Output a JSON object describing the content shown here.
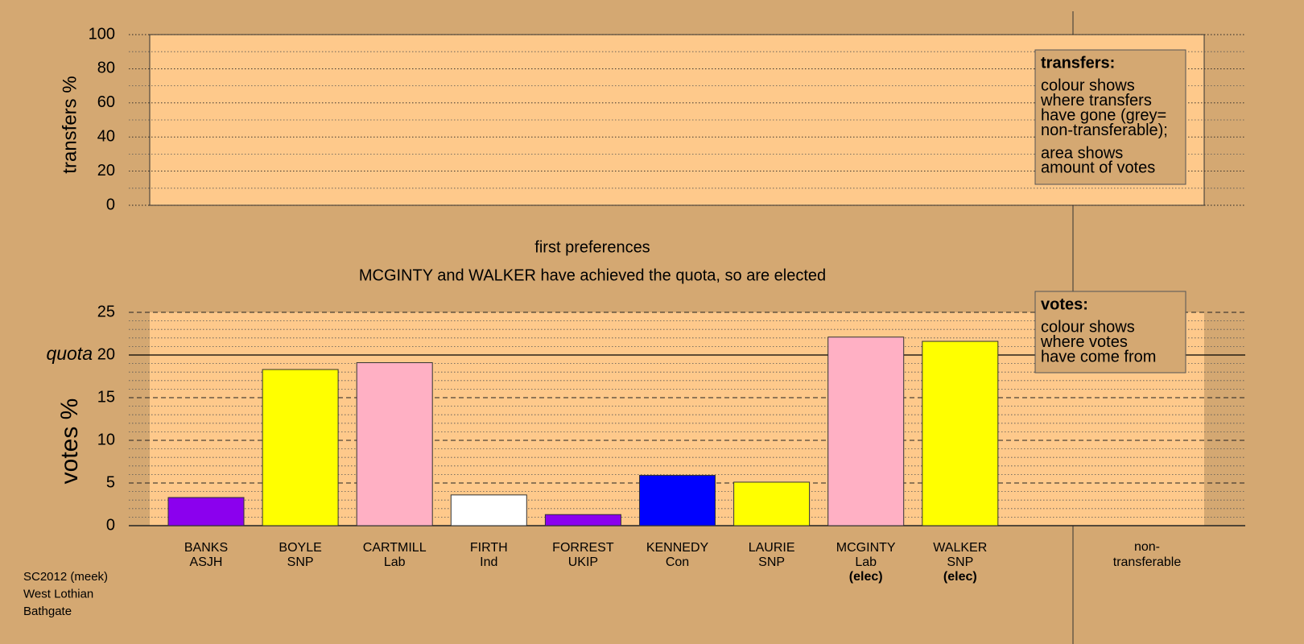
{
  "chart_data": [
    {
      "type": "empty",
      "y_label": "transfers %",
      "ylim": [
        0,
        100
      ],
      "yticks": [
        0,
        20,
        40,
        60,
        80,
        100
      ],
      "minor_yticks": [
        10,
        30,
        50,
        70,
        90
      ],
      "legend_note": {
        "title": "transfers:",
        "lines": [
          "colour shows",
          "where transfers",
          "have gone (grey=",
          "non-transferable);"
        ],
        "lines2": [
          "area shows",
          "amount of votes"
        ]
      }
    },
    {
      "type": "bar",
      "title": "first preferences",
      "subtitle": "MCGINTY and WALKER have achieved the quota, so are elected",
      "y_label": "votes %",
      "ylim": [
        0,
        25
      ],
      "yticks": [
        0,
        5,
        10,
        15,
        20,
        25
      ],
      "minor_yticks": [
        1,
        2,
        3,
        4,
        6,
        7,
        8,
        9,
        11,
        12,
        13,
        14,
        16,
        17,
        18,
        19,
        21,
        22,
        23,
        24
      ],
      "quota": {
        "label": "quota",
        "value": 20
      },
      "categories": [
        "BANKS",
        "BOYLE",
        "CARTMILL",
        "FIRTH",
        "FORREST",
        "KENNEDY",
        "LAURIE",
        "MCGINTY",
        "WALKER"
      ],
      "parties": [
        "ASJH",
        "SNP",
        "Lab",
        "Ind",
        "UKIP",
        "Con",
        "SNP",
        "Lab",
        "SNP"
      ],
      "status": [
        null,
        null,
        null,
        null,
        null,
        null,
        null,
        "(elec)",
        "(elec)"
      ],
      "values": [
        3.3,
        18.3,
        19.1,
        3.6,
        1.3,
        5.9,
        5.1,
        22.1,
        21.6
      ],
      "colors": [
        "#8b00ee",
        "#ffff00",
        "#ffb0c4",
        "#ffffff",
        "#8b00ee",
        "#0000ff",
        "#ffff00",
        "#ffb0c4",
        "#ffff00"
      ],
      "extra_category": [
        "non-",
        "transferable"
      ],
      "legend_note": {
        "title": "votes:",
        "lines": [
          "colour shows",
          "where votes",
          "have come from"
        ]
      }
    }
  ],
  "footer": [
    "SC2012 (meek)",
    "West Lothian",
    "Bathgate"
  ]
}
